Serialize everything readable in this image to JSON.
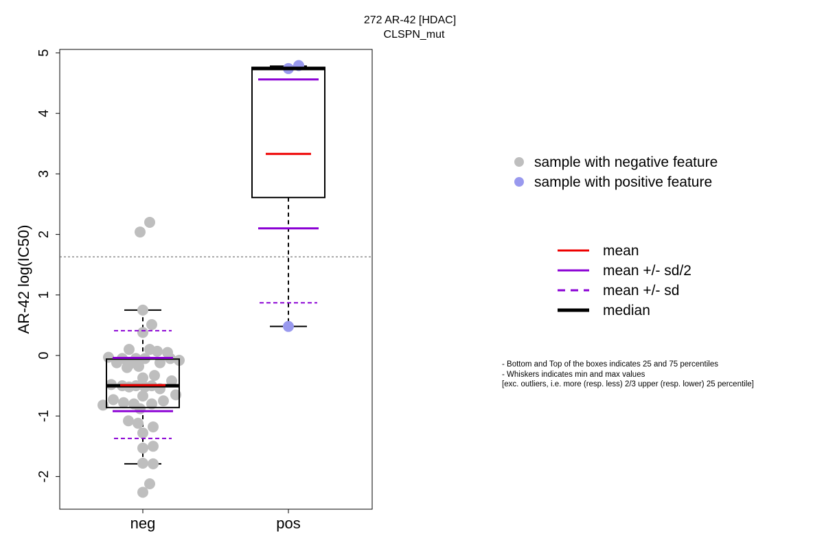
{
  "chart_data": {
    "type": "box",
    "title": "272 AR-42 [HDAC]",
    "subtitle": "CLSPN_mut",
    "xlabel": "",
    "ylabel": "AR-42 log(IC50)",
    "ylim": [
      -2.5,
      5.05
    ],
    "yticks": [
      -2,
      -1,
      0,
      1,
      2,
      3,
      4,
      5
    ],
    "categories": [
      "neg",
      "pos"
    ],
    "threshold": 1.63,
    "boxes": [
      {
        "group": "neg",
        "q1": -0.86,
        "median": -0.5,
        "q3": -0.06,
        "whisker_low": -1.79,
        "whisker_high": 0.75,
        "mean": -0.49,
        "mean_minus_half_sd": -0.92,
        "mean_plus_half_sd": -0.04,
        "mean_minus_sd": -1.37,
        "mean_plus_sd": 0.41,
        "points": [
          2.2,
          2.04,
          0.75,
          0.51,
          0.38,
          0.1,
          0.1,
          0.07,
          0.05,
          -0.03,
          -0.05,
          -0.05,
          -0.05,
          -0.05,
          -0.08,
          -0.12,
          -0.12,
          -0.15,
          -0.18,
          -0.2,
          -0.33,
          -0.37,
          -0.42,
          -0.48,
          -0.5,
          -0.5,
          -0.5,
          -0.52,
          -0.52,
          -0.55,
          -0.65,
          -0.67,
          -0.73,
          -0.75,
          -0.78,
          -0.8,
          -0.8,
          -0.82,
          -0.88,
          -1.08,
          -1.12,
          -1.18,
          -1.28,
          -1.5,
          -1.53,
          -1.78,
          -1.79,
          -2.12,
          -2.26
        ],
        "point_offsets": [
          0.1,
          -0.04,
          0,
          0.13,
          0,
          0.1,
          -0.2,
          0.21,
          0.36,
          -0.5,
          -0.1,
          -0.3,
          0.03,
          0.4,
          0.53,
          -0.38,
          0.25,
          -0.2,
          -0.06,
          -0.23,
          0.17,
          0,
          0.42,
          -0.46,
          -0.3,
          -0.1,
          0.13,
          -0.2,
          0.03,
          0.25,
          0.48,
          0,
          -0.43,
          0.3,
          -0.28,
          -0.13,
          0.13,
          -0.58,
          -0.04,
          -0.21,
          -0.07,
          0.15,
          0,
          0.15,
          0,
          0,
          0.15,
          0.1,
          0
        ]
      },
      {
        "group": "pos",
        "q1": 2.61,
        "median": 4.74,
        "q3": 4.76,
        "whisker_low": 0.48,
        "whisker_high": 4.78,
        "mean": 3.33,
        "mean_minus_half_sd": 2.1,
        "mean_plus_half_sd": 4.56,
        "mean_minus_sd": 0.87,
        "mean_plus_sd": null,
        "points": [
          4.79,
          4.74,
          0.48
        ],
        "point_offsets": [
          0.15,
          0,
          0
        ]
      }
    ],
    "colors": {
      "negative": "#bebebe",
      "positive": "#9999ee",
      "mean": "#ee0000",
      "sd": "#8a00d4",
      "median": "#000000",
      "threshold": "#555555"
    },
    "legend": {
      "position": "right",
      "points": [
        {
          "label": "sample with negative feature",
          "color": "#bebebe"
        },
        {
          "label": "sample with positive feature",
          "color": "#9999ee"
        }
      ],
      "lines": [
        {
          "label": "mean",
          "color": "#ee0000",
          "style": "solid"
        },
        {
          "label": "mean +/- sd/2",
          "color": "#8a00d4",
          "style": "solid"
        },
        {
          "label": "mean +/- sd",
          "color": "#8a00d4",
          "style": "dashed"
        },
        {
          "label": "median",
          "color": "#000000",
          "style": "bold"
        }
      ]
    }
  },
  "notes": [
    "- Bottom and Top of the boxes indicates 25 and 75 percentiles",
    "- Whiskers indicates min and max values",
    "[exc. outliers, i.e. more (resp. less) 2/3 upper (resp. lower) 25 percentile]"
  ]
}
